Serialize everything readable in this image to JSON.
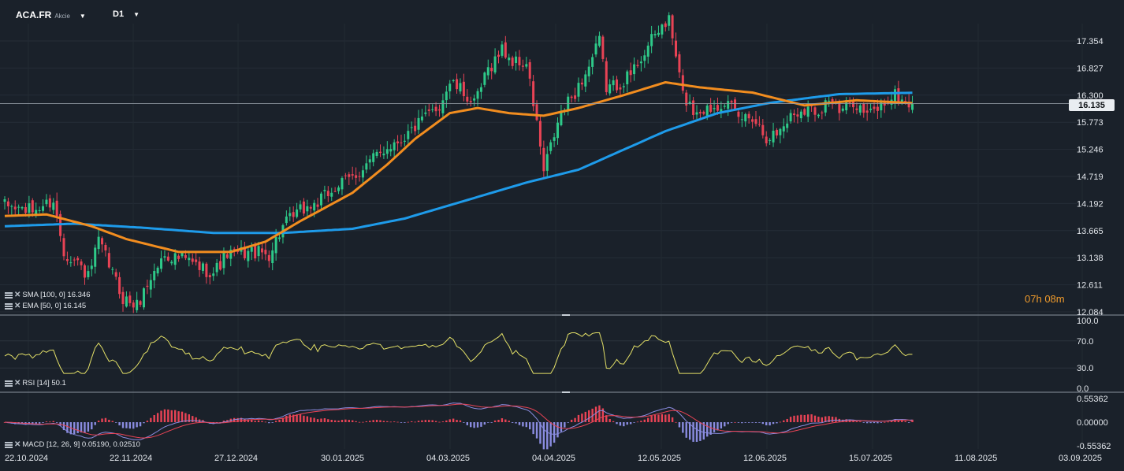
{
  "header": {
    "symbol": "ACA.FR",
    "symbol_type": "Akcie",
    "timeframe": "D1"
  },
  "indicators": {
    "sma": "SMA [100,  0] 16.346",
    "ema": "EMA [50, 0] 16.145",
    "rsi": "RSI [14]  50.1",
    "macd": "MACD [12, 26, 9] 0.05190,  0.02510"
  },
  "countdown": {
    "hours": "07h",
    "minutes": "08m"
  },
  "last_price": "16.135",
  "colors": {
    "background": "#1a212a",
    "bull": "#2ec989",
    "bear": "#e84355",
    "sma": "#1e9bea",
    "ema": "#f28d1f",
    "rsi": "#e3e067",
    "macd_line": "#8a8ce0",
    "signal_line": "#e84355",
    "hist_pos": "#e84355",
    "hist_neg": "#8a8ce0",
    "countdown": "#f09b2c"
  },
  "chart_data": [
    {
      "type": "candlestick",
      "name": "ACA.FR D1",
      "y_ticks": [
        "17.354",
        "16.827",
        "16.300",
        "15.773",
        "15.246",
        "14.719",
        "14.192",
        "13.665",
        "13.138",
        "12.611",
        "12.084"
      ],
      "ylim": [
        12.084,
        17.88
      ],
      "x_ticks": [
        "22.10.2024",
        "22.11.2024",
        "27.12.2024",
        "30.01.2025",
        "04.03.2025",
        "04.04.2025",
        "12.05.2025",
        "12.06.2025",
        "15.07.2025",
        "11.08.2025",
        "03.09.2025"
      ],
      "close_path": [
        {
          "t": 0,
          "c": 14.15
        },
        {
          "t": 8,
          "c": 14.05
        },
        {
          "t": 14,
          "c": 14.25
        },
        {
          "t": 17,
          "c": 13.25
        },
        {
          "t": 21,
          "c": 13.05
        },
        {
          "t": 24,
          "c": 12.75
        },
        {
          "t": 27,
          "c": 13.45
        },
        {
          "t": 30,
          "c": 13.0
        },
        {
          "t": 34,
          "c": 12.35
        },
        {
          "t": 38,
          "c": 12.2
        },
        {
          "t": 42,
          "c": 12.75
        },
        {
          "t": 46,
          "c": 13.2
        },
        {
          "t": 52,
          "c": 13.1
        },
        {
          "t": 56,
          "c": 12.95
        },
        {
          "t": 60,
          "c": 12.85
        },
        {
          "t": 64,
          "c": 13.2
        },
        {
          "t": 71,
          "c": 13.25
        },
        {
          "t": 76,
          "c": 13.2
        },
        {
          "t": 80,
          "c": 13.75
        },
        {
          "t": 85,
          "c": 14.05
        },
        {
          "t": 90,
          "c": 14.2
        },
        {
          "t": 95,
          "c": 14.5
        },
        {
          "t": 100,
          "c": 14.7
        },
        {
          "t": 105,
          "c": 15.0
        },
        {
          "t": 110,
          "c": 15.3
        },
        {
          "t": 115,
          "c": 15.5
        },
        {
          "t": 120,
          "c": 15.8
        },
        {
          "t": 125,
          "c": 16.1
        },
        {
          "t": 128,
          "c": 16.55
        },
        {
          "t": 132,
          "c": 16.35
        },
        {
          "t": 135,
          "c": 16.1
        },
        {
          "t": 139,
          "c": 16.8
        },
        {
          "t": 143,
          "c": 17.2
        },
        {
          "t": 146,
          "c": 16.95
        },
        {
          "t": 150,
          "c": 16.9
        },
        {
          "t": 153,
          "c": 15.75
        },
        {
          "t": 155,
          "c": 14.8
        },
        {
          "t": 157,
          "c": 15.3
        },
        {
          "t": 160,
          "c": 15.95
        },
        {
          "t": 164,
          "c": 16.35
        },
        {
          "t": 168,
          "c": 16.85
        },
        {
          "t": 171,
          "c": 17.35
        },
        {
          "t": 173,
          "c": 16.45
        },
        {
          "t": 176,
          "c": 16.5
        },
        {
          "t": 180,
          "c": 16.7
        },
        {
          "t": 183,
          "c": 17.05
        },
        {
          "t": 186,
          "c": 17.35
        },
        {
          "t": 189,
          "c": 17.65
        },
        {
          "t": 191,
          "c": 17.75
        },
        {
          "t": 193,
          "c": 17.05
        },
        {
          "t": 195,
          "c": 16.3
        },
        {
          "t": 198,
          "c": 16.0
        },
        {
          "t": 203,
          "c": 16.05
        },
        {
          "t": 207,
          "c": 16.2
        },
        {
          "t": 211,
          "c": 15.85
        },
        {
          "t": 215,
          "c": 15.9
        },
        {
          "t": 219,
          "c": 15.5
        },
        {
          "t": 222,
          "c": 15.55
        },
        {
          "t": 226,
          "c": 15.9
        },
        {
          "t": 230,
          "c": 16.05
        },
        {
          "t": 234,
          "c": 16.0
        },
        {
          "t": 237,
          "c": 16.25
        },
        {
          "t": 240,
          "c": 15.95
        },
        {
          "t": 244,
          "c": 16.2
        },
        {
          "t": 248,
          "c": 15.9
        },
        {
          "t": 252,
          "c": 16.1
        },
        {
          "t": 256,
          "c": 16.3
        },
        {
          "t": 259,
          "c": 16.15
        },
        {
          "t": 261,
          "c": 16.135
        }
      ],
      "sma_100_path": [
        {
          "t": 0,
          "v": 13.75
        },
        {
          "t": 20,
          "v": 13.8
        },
        {
          "t": 40,
          "v": 13.72
        },
        {
          "t": 60,
          "v": 13.62
        },
        {
          "t": 80,
          "v": 13.62
        },
        {
          "t": 100,
          "v": 13.7
        },
        {
          "t": 115,
          "v": 13.9
        },
        {
          "t": 130,
          "v": 14.2
        },
        {
          "t": 150,
          "v": 14.6
        },
        {
          "t": 165,
          "v": 14.85
        },
        {
          "t": 175,
          "v": 15.15
        },
        {
          "t": 190,
          "v": 15.6
        },
        {
          "t": 205,
          "v": 15.95
        },
        {
          "t": 220,
          "v": 16.15
        },
        {
          "t": 240,
          "v": 16.32
        },
        {
          "t": 261,
          "v": 16.346
        }
      ],
      "ema_50_path": [
        {
          "t": 0,
          "v": 13.95
        },
        {
          "t": 12,
          "v": 13.98
        },
        {
          "t": 25,
          "v": 13.75
        },
        {
          "t": 35,
          "v": 13.5
        },
        {
          "t": 50,
          "v": 13.25
        },
        {
          "t": 65,
          "v": 13.25
        },
        {
          "t": 75,
          "v": 13.45
        },
        {
          "t": 85,
          "v": 13.85
        },
        {
          "t": 100,
          "v": 14.4
        },
        {
          "t": 110,
          "v": 14.95
        },
        {
          "t": 118,
          "v": 15.45
        },
        {
          "t": 128,
          "v": 15.95
        },
        {
          "t": 136,
          "v": 16.05
        },
        {
          "t": 145,
          "v": 15.95
        },
        {
          "t": 155,
          "v": 15.9
        },
        {
          "t": 165,
          "v": 16.05
        },
        {
          "t": 178,
          "v": 16.3
        },
        {
          "t": 190,
          "v": 16.55
        },
        {
          "t": 200,
          "v": 16.45
        },
        {
          "t": 215,
          "v": 16.35
        },
        {
          "t": 230,
          "v": 16.1
        },
        {
          "t": 245,
          "v": 16.2
        },
        {
          "t": 261,
          "v": 16.145
        }
      ]
    },
    {
      "type": "line",
      "name": "RSI [14]",
      "y_ticks": [
        "100.0",
        "70.0",
        "30.0",
        "0.0"
      ],
      "ylim": [
        0,
        100
      ],
      "current": 50.1
    },
    {
      "type": "macd",
      "name": "MACD [12, 26, 9]",
      "y_ticks": [
        "0.55362",
        "0.00000",
        "-0.55362"
      ],
      "ylim": [
        -0.55362,
        0.55362
      ],
      "macd": 0.0519,
      "signal": 0.0251
    }
  ]
}
